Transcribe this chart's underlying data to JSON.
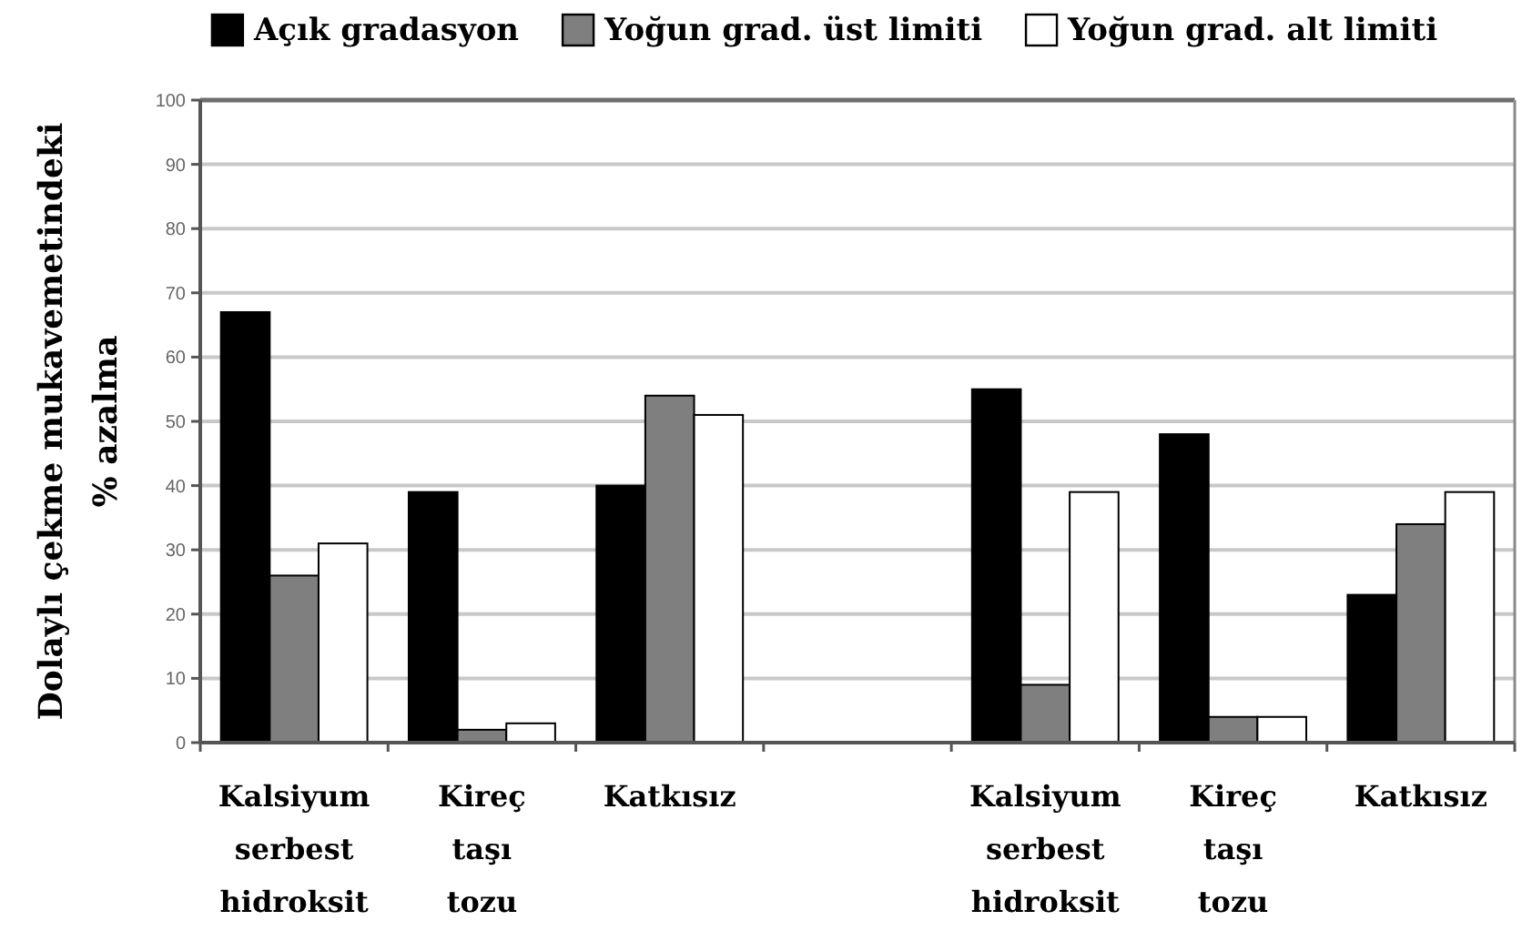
{
  "chart_data": {
    "type": "bar",
    "ylabel": "Dolaylı çekme mukavemetindeki\n% azalma",
    "categories": [
      "Kalsiyum serbest hidroksit",
      "Kireç taşı tozu",
      "Katkısız",
      null,
      "Kalsiyum serbest hidroksit",
      "Kireç taşı tozu",
      "Katkısız"
    ],
    "series": [
      {
        "name": "Açık gradasyon",
        "color": "#000000",
        "values": [
          67,
          39,
          40,
          null,
          55,
          48,
          23
        ]
      },
      {
        "name": "Yoğun grad. üst limiti",
        "color": "#7f7f7f",
        "values": [
          26,
          2,
          54,
          null,
          9,
          4,
          34
        ]
      },
      {
        "name": "Yoğun grad. alt limiti",
        "color": "#ffffff",
        "values": [
          31,
          3,
          51,
          null,
          39,
          4,
          39
        ]
      }
    ],
    "ylim": [
      0,
      100
    ],
    "yticks": [
      0,
      10,
      20,
      30,
      40,
      50,
      60,
      70,
      80,
      90,
      100
    ],
    "grid": "y",
    "legend": "top"
  }
}
